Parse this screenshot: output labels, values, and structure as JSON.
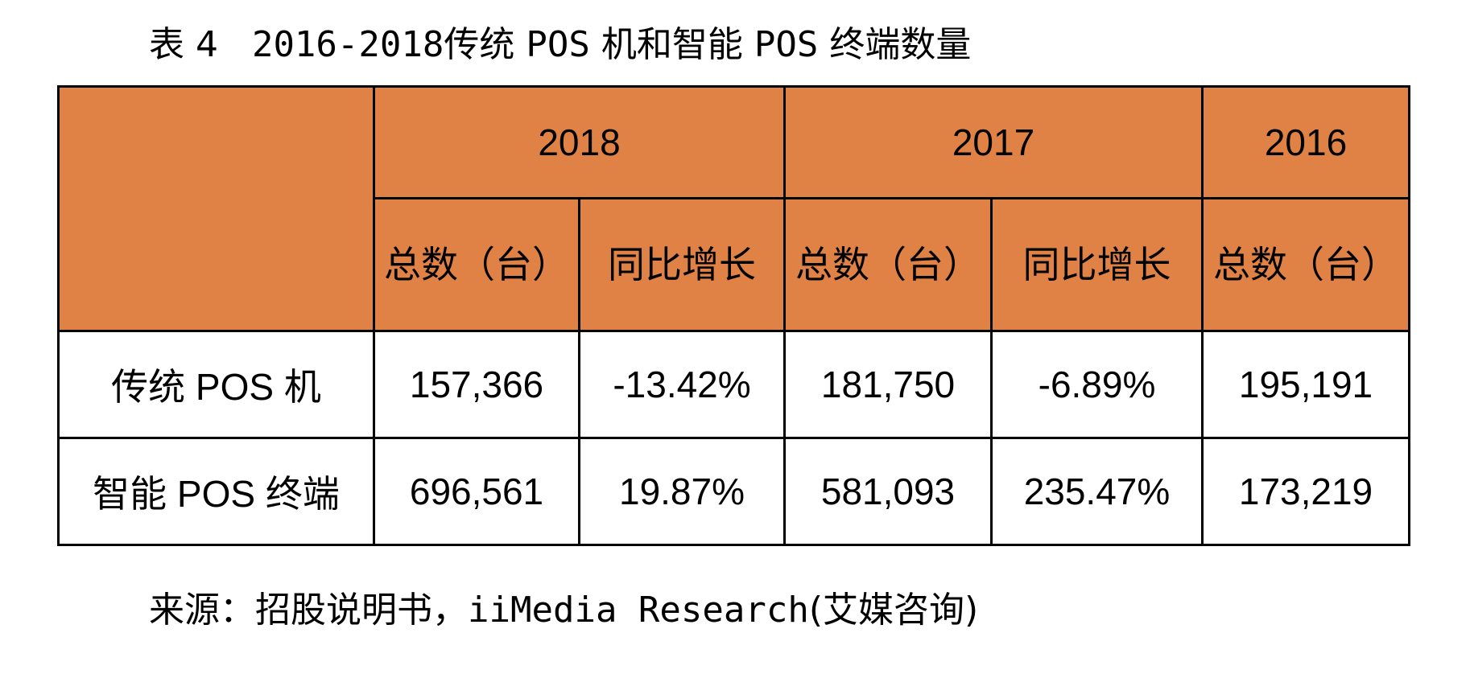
{
  "caption": {
    "label": "表 4",
    "range": "2016-2018",
    "title_a": "传统",
    "pos1": "POS",
    "title_b": "机和智能",
    "pos2": "POS",
    "title_c": "终端数量"
  },
  "table": {
    "years": [
      "2018",
      "2017",
      "2016"
    ],
    "sub_headers": {
      "total": "总数（台）",
      "yoy": "同比增长"
    },
    "rows": [
      {
        "label": "传统 POS 机",
        "values": [
          "157,366",
          "-13.42%",
          "181,750",
          "-6.89%",
          "195,191"
        ]
      },
      {
        "label": "智能 POS 终端",
        "values": [
          "696,561",
          "19.87%",
          "581,093",
          "235.47%",
          "173,219"
        ]
      }
    ]
  },
  "source": {
    "prefix": "来源：招股说明书，",
    "latin": "iiMedia Research",
    "suffix": "(艾媒咨询)"
  },
  "colors": {
    "header_fill": "#e08246",
    "border": "#000000",
    "background": "#ffffff"
  }
}
